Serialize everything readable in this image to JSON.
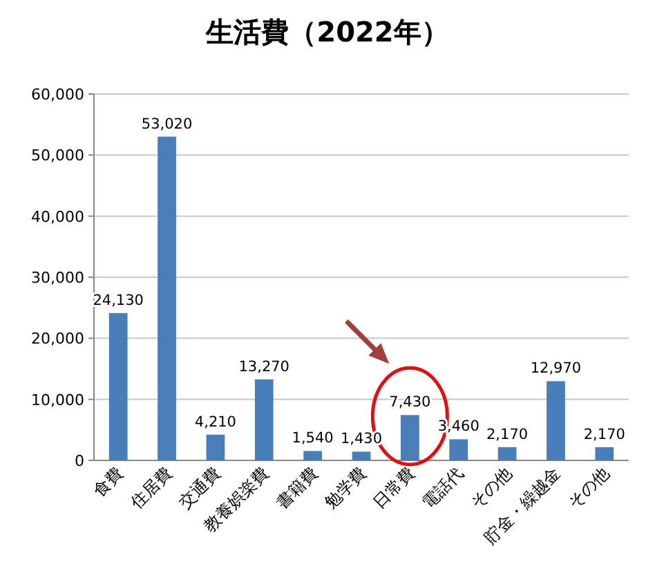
{
  "chart_data": {
    "type": "bar",
    "title": "生活費（2022年）",
    "categories": [
      "食費",
      "住居費",
      "交通費",
      "教養娯楽費",
      "書籍費",
      "勉学費",
      "日常費",
      "電話代",
      "その他",
      "貯金・繰越金",
      "その他"
    ],
    "values": [
      24130,
      53020,
      4210,
      13270,
      1540,
      1430,
      7430,
      3460,
      2170,
      12970,
      2170
    ],
    "color": "#4a7ebb",
    "ylim": [
      0,
      60000
    ],
    "yticks": [
      {
        "value": 0,
        "label": "0"
      },
      {
        "value": 10000,
        "label": "10,000"
      },
      {
        "value": 20000,
        "label": "20,000"
      },
      {
        "value": 30000,
        "label": "30,000"
      },
      {
        "value": 40000,
        "label": "40,000"
      },
      {
        "value": 50000,
        "label": "50,000"
      },
      {
        "value": 60000,
        "label": "60,000"
      }
    ],
    "grid": "y",
    "value_labels": [
      "24,130",
      "53,020",
      "4,210",
      "13,270",
      "1,540",
      "1,430",
      "7,430",
      "3,460",
      "2,170",
      "12,970",
      "2,170"
    ]
  }
}
